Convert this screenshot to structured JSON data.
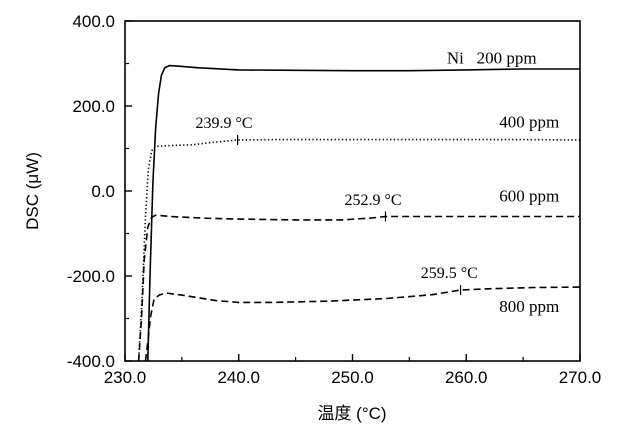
{
  "chart_data": {
    "type": "line",
    "xlabel": "温度 (°C)",
    "ylabel": "DSC (μW)",
    "xlim": [
      230.0,
      270.0
    ],
    "ylim": [
      -400.0,
      400.0
    ],
    "x_ticks": [
      "230.0",
      "240.0",
      "250.0",
      "260.0",
      "270.0"
    ],
    "y_ticks": [
      "400.0",
      "200.0",
      "0.0",
      "-200.0",
      "-400.0"
    ],
    "grid": false,
    "series": [
      {
        "name": "Ni 200 ppm",
        "style": "solid",
        "points": [
          [
            232.0,
            -400
          ],
          [
            232.2,
            -200
          ],
          [
            232.45,
            20
          ],
          [
            232.7,
            150
          ],
          [
            232.95,
            230
          ],
          [
            233.2,
            272
          ],
          [
            233.5,
            290
          ],
          [
            233.9,
            295
          ],
          [
            234.6,
            294
          ],
          [
            236.5,
            290
          ],
          [
            240,
            285
          ],
          [
            245,
            284
          ],
          [
            250,
            283
          ],
          [
            255,
            283
          ],
          [
            260,
            285
          ],
          [
            265,
            287
          ],
          [
            270,
            287
          ]
        ]
      },
      {
        "name": "400 ppm",
        "style": "dotted",
        "points": [
          [
            231.2,
            -400
          ],
          [
            231.5,
            -250
          ],
          [
            231.8,
            -60
          ],
          [
            232.05,
            50
          ],
          [
            232.35,
            95
          ],
          [
            232.7,
            105
          ],
          [
            234,
            107
          ],
          [
            236,
            109
          ],
          [
            237.5,
            114
          ],
          [
            239.9,
            120
          ],
          [
            243,
            121
          ],
          [
            250,
            121
          ],
          [
            255,
            121
          ],
          [
            260,
            121
          ],
          [
            265,
            121
          ],
          [
            270,
            120
          ]
        ]
      },
      {
        "name": "600 ppm",
        "style": "dashed",
        "points": [
          [
            231.2,
            -400
          ],
          [
            231.45,
            -300
          ],
          [
            231.7,
            -160
          ],
          [
            232.0,
            -85
          ],
          [
            232.35,
            -62
          ],
          [
            232.7,
            -57
          ],
          [
            234,
            -60
          ],
          [
            237,
            -64
          ],
          [
            240,
            -66
          ],
          [
            245,
            -68
          ],
          [
            249,
            -68
          ],
          [
            251.5,
            -64
          ],
          [
            252.9,
            -60
          ],
          [
            256,
            -60
          ],
          [
            260,
            -60
          ],
          [
            265,
            -60
          ],
          [
            270,
            -60
          ]
        ]
      },
      {
        "name": "800 ppm",
        "style": "dashed",
        "points": [
          [
            231.8,
            -400
          ],
          [
            232.0,
            -355
          ],
          [
            232.25,
            -295
          ],
          [
            232.55,
            -255
          ],
          [
            233.0,
            -245
          ],
          [
            233.6,
            -240
          ],
          [
            235,
            -245
          ],
          [
            238,
            -258
          ],
          [
            240,
            -262
          ],
          [
            243,
            -262
          ],
          [
            248,
            -259
          ],
          [
            253,
            -253
          ],
          [
            257,
            -244
          ],
          [
            259.5,
            -233
          ],
          [
            262,
            -230
          ],
          [
            266,
            -227
          ],
          [
            270,
            -226
          ]
        ]
      }
    ],
    "series_labels": [
      {
        "text": "Ni   200 ppm",
        "x": 258.3,
        "y": 300
      },
      {
        "text": "400 ppm",
        "x": 262.9,
        "y": 150
      },
      {
        "text": "600 ppm",
        "x": 262.9,
        "y": -25
      },
      {
        "text": "800 ppm",
        "x": 262.9,
        "y": -285
      }
    ],
    "annotations": [
      {
        "text": "239.9 °C",
        "x": 239.9,
        "y": 120,
        "label_x": 236.2,
        "label_y": 148
      },
      {
        "text": "252.9 °C",
        "x": 252.9,
        "y": -60,
        "label_x": 249.3,
        "label_y": -33
      },
      {
        "text": "259.5 °C",
        "x": 259.5,
        "y": -233,
        "label_x": 256.0,
        "label_y": -205
      }
    ]
  }
}
